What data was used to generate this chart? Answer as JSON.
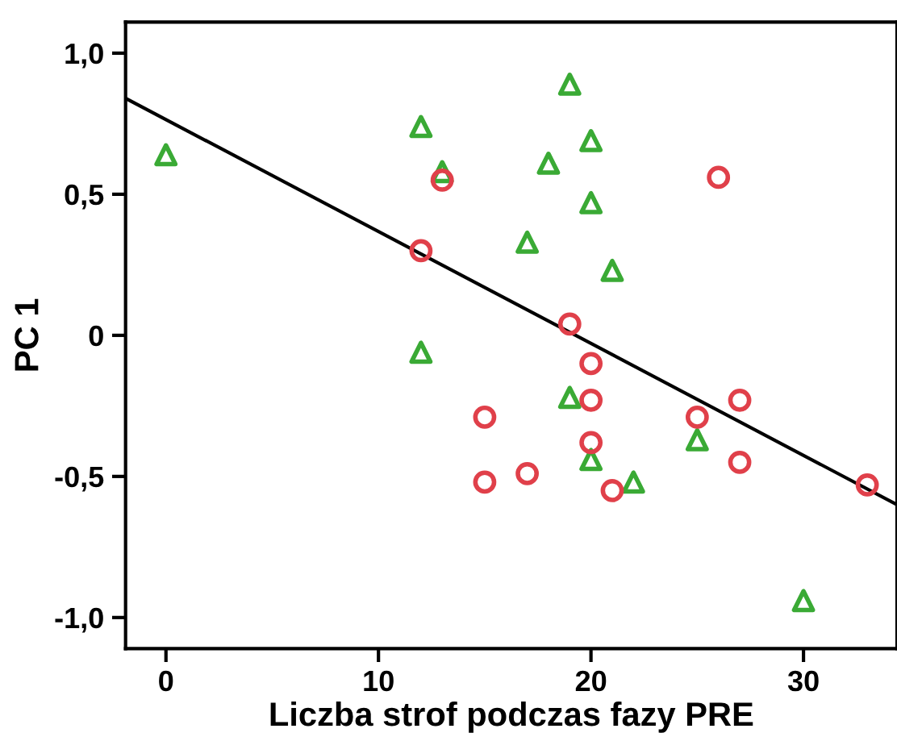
{
  "chart_data": {
    "type": "scatter",
    "xlabel": "Liczba strof podczas fazy PRE",
    "ylabel": "PC 1",
    "xlim": [
      -1.9,
      34.4
    ],
    "ylim": [
      -1.11,
      1.11
    ],
    "xticks": [
      0,
      10,
      20,
      30
    ],
    "yticks": [
      {
        "value": 1.0,
        "label": "1,0"
      },
      {
        "value": 0.5,
        "label": "0,5"
      },
      {
        "value": 0,
        "label": "0"
      },
      {
        "value": -0.5,
        "label": "-0,5"
      },
      {
        "value": -1.0,
        "label": "-1,0"
      }
    ],
    "grid": false,
    "legend": false,
    "series": [
      {
        "marker": "triangle",
        "color": "#3aaa35",
        "x": [
          0,
          12,
          13,
          19,
          20,
          18,
          20,
          17,
          21,
          12,
          19,
          20,
          22,
          25,
          30
        ],
        "values": [
          0.64,
          0.74,
          0.58,
          0.89,
          0.69,
          0.61,
          0.47,
          0.33,
          0.23,
          -0.06,
          -0.22,
          -0.44,
          -0.52,
          -0.37,
          -0.94
        ]
      },
      {
        "marker": "circle",
        "color": "#e0404a",
        "x": [
          13,
          12,
          26,
          19,
          20,
          20,
          25,
          27,
          15,
          15,
          17,
          20,
          21,
          27,
          33
        ],
        "values": [
          0.55,
          0.3,
          0.56,
          0.04,
          -0.1,
          -0.23,
          -0.29,
          -0.23,
          -0.29,
          -0.52,
          -0.49,
          -0.38,
          -0.55,
          -0.45,
          -0.53
        ]
      },
      {
        "type": "line",
        "marker": "none",
        "line_style": "solid",
        "color": "#000000",
        "x": [
          -1.9,
          34.4
        ],
        "values": [
          0.84,
          -0.6
        ]
      }
    ]
  }
}
